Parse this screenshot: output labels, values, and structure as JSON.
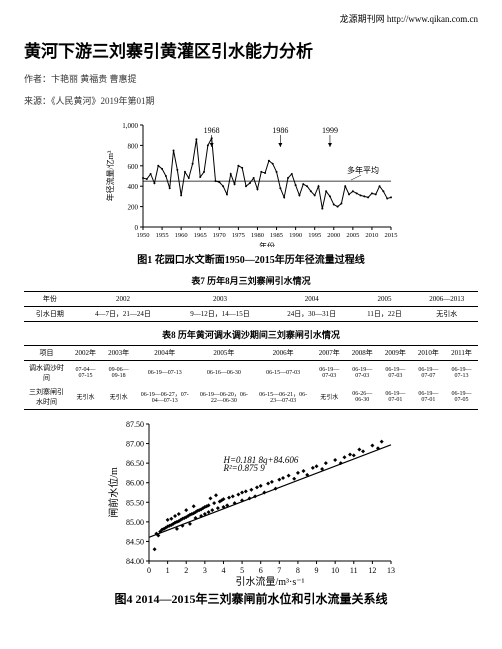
{
  "header": {
    "site_link": "龙源期刊网 http://www.qikan.com.cn"
  },
  "title": "黄河下游三刘寨引黄灌区引水能力分析",
  "authors_line": "作者：卞艳丽 黄福贵 曹惠提",
  "source_line": "来源：《人民黄河》2019年第01期",
  "fig1": {
    "caption": "图1   花园口水文断面1950—2015年历年径流量过程线",
    "ylabel": "年径流量/亿m³",
    "xlabel": "年份",
    "ylim": [
      0,
      1000
    ],
    "ytick_step": 200,
    "xlim": [
      1950,
      2015
    ],
    "xtick_step": 5,
    "annotations": [
      {
        "label": "1968",
        "x": 1968
      },
      {
        "label": "1986",
        "x": 1986
      },
      {
        "label": "1999",
        "x": 1999
      }
    ],
    "avg_label": "多年平均",
    "data": [
      [
        1950,
        480
      ],
      [
        1951,
        470
      ],
      [
        1952,
        520
      ],
      [
        1953,
        430
      ],
      [
        1954,
        600
      ],
      [
        1955,
        570
      ],
      [
        1956,
        500
      ],
      [
        1957,
        380
      ],
      [
        1958,
        750
      ],
      [
        1959,
        560
      ],
      [
        1960,
        310
      ],
      [
        1961,
        540
      ],
      [
        1962,
        480
      ],
      [
        1963,
        620
      ],
      [
        1964,
        860
      ],
      [
        1965,
        490
      ],
      [
        1966,
        540
      ],
      [
        1967,
        800
      ],
      [
        1968,
        870
      ],
      [
        1969,
        450
      ],
      [
        1970,
        440
      ],
      [
        1971,
        400
      ],
      [
        1972,
        320
      ],
      [
        1973,
        520
      ],
      [
        1974,
        420
      ],
      [
        1975,
        600
      ],
      [
        1976,
        580
      ],
      [
        1977,
        400
      ],
      [
        1978,
        430
      ],
      [
        1979,
        480
      ],
      [
        1980,
        370
      ],
      [
        1981,
        540
      ],
      [
        1982,
        530
      ],
      [
        1983,
        650
      ],
      [
        1984,
        620
      ],
      [
        1985,
        540
      ],
      [
        1986,
        380
      ],
      [
        1987,
        290
      ],
      [
        1988,
        480
      ],
      [
        1989,
        520
      ],
      [
        1990,
        410
      ],
      [
        1991,
        310
      ],
      [
        1992,
        420
      ],
      [
        1993,
        400
      ],
      [
        1994,
        350
      ],
      [
        1995,
        310
      ],
      [
        1996,
        400
      ],
      [
        1997,
        180
      ],
      [
        1998,
        350
      ],
      [
        1999,
        300
      ],
      [
        2000,
        220
      ],
      [
        2001,
        200
      ],
      [
        2002,
        230
      ],
      [
        2003,
        400
      ],
      [
        2004,
        320
      ],
      [
        2005,
        350
      ],
      [
        2006,
        330
      ],
      [
        2007,
        310
      ],
      [
        2008,
        300
      ],
      [
        2009,
        290
      ],
      [
        2010,
        330
      ],
      [
        2011,
        320
      ],
      [
        2012,
        400
      ],
      [
        2013,
        350
      ],
      [
        2014,
        280
      ],
      [
        2015,
        290
      ]
    ],
    "avg_value": 450,
    "line_color": "#000",
    "grid_color": "#ccc"
  },
  "table7": {
    "title": "表7 历年8月三刘寨闸引水情况",
    "headers": [
      "年份",
      "2002",
      "2003",
      "2004",
      "2005",
      "2006—2013"
    ],
    "row_label": "引水日期",
    "cells": [
      "4—7日，21—24日",
      "9—12日，14—15日",
      "24日，30—31日",
      "11日，22日",
      "无引水"
    ]
  },
  "table8": {
    "title": "表8 历年黄河调水调沙期间三刘寨闸引水情况",
    "headers": [
      "项目",
      "2002年",
      "2003年",
      "2004年",
      "2005年",
      "2006年",
      "2007年",
      "2008年",
      "2009年",
      "2010年",
      "2011年"
    ],
    "rows": [
      {
        "label": "调水调沙时间",
        "cells": [
          "07-04—07-15",
          "09-06—09-18",
          "06-19—07-13",
          "06-16—06-30",
          "06-15—07-03",
          "06-19—07-03",
          "06-19—07-03",
          "06-19—07-03",
          "06-19—07-07",
          "06-19—07-13"
        ]
      },
      {
        "label": "三刘寨闸引水时间",
        "cells": [
          "无引水",
          "无引水",
          "06-19—06-27，07-04—07-13",
          "06-19—06-20，06-22—06-30",
          "06-15—06-21，06-23—07-03",
          "无引水",
          "06-26—06-30",
          "06-19—07-01",
          "06-19—07-01",
          "06-19—07-05"
        ]
      }
    ]
  },
  "fig4": {
    "caption": "图4  2014—2015年三刘寨闸前水位和引水流量关系线",
    "xlabel": "引水流量/m³·s⁻¹",
    "ylabel": "闸前水位/m",
    "xlim": [
      0,
      13
    ],
    "xtick_step": 1,
    "ylim": [
      84.0,
      87.5
    ],
    "ytick_step": 0.5,
    "eq1": "H=0.181 8q+84.606",
    "eq2": "R²=0.875 9",
    "fit": {
      "m": 0.1818,
      "b": 84.606
    },
    "points": [
      [
        0.3,
        84.3
      ],
      [
        0.4,
        84.7
      ],
      [
        0.5,
        84.65
      ],
      [
        0.6,
        84.75
      ],
      [
        0.7,
        84.8
      ],
      [
        0.8,
        84.82
      ],
      [
        0.9,
        84.85
      ],
      [
        1.0,
        84.88
      ],
      [
        1.0,
        85.05
      ],
      [
        1.1,
        84.9
      ],
      [
        1.2,
        84.92
      ],
      [
        1.2,
        85.08
      ],
      [
        1.3,
        84.95
      ],
      [
        1.4,
        84.98
      ],
      [
        1.4,
        85.15
      ],
      [
        1.5,
        85.0
      ],
      [
        1.5,
        84.82
      ],
      [
        1.6,
        85.02
      ],
      [
        1.6,
        85.2
      ],
      [
        1.7,
        85.05
      ],
      [
        1.8,
        85.08
      ],
      [
        1.8,
        84.9
      ],
      [
        1.9,
        85.1
      ],
      [
        2.0,
        85.12
      ],
      [
        2.0,
        85.3
      ],
      [
        2.1,
        85.15
      ],
      [
        2.2,
        85.18
      ],
      [
        2.2,
        84.95
      ],
      [
        2.3,
        85.2
      ],
      [
        2.4,
        85.22
      ],
      [
        2.4,
        85.4
      ],
      [
        2.5,
        85.1
      ],
      [
        2.5,
        85.25
      ],
      [
        2.6,
        85.28
      ],
      [
        2.7,
        85.3
      ],
      [
        2.8,
        85.15
      ],
      [
        2.8,
        85.32
      ],
      [
        2.9,
        85.35
      ],
      [
        3.0,
        85.2
      ],
      [
        3.0,
        85.38
      ],
      [
        3.1,
        85.4
      ],
      [
        3.2,
        85.25
      ],
      [
        3.2,
        85.42
      ],
      [
        3.3,
        85.6
      ],
      [
        3.4,
        85.3
      ],
      [
        3.5,
        85.48
      ],
      [
        3.6,
        85.68
      ],
      [
        3.7,
        85.35
      ],
      [
        3.8,
        85.52
      ],
      [
        3.9,
        85.55
      ],
      [
        4.0,
        85.38
      ],
      [
        4.0,
        85.58
      ],
      [
        4.2,
        85.42
      ],
      [
        4.3,
        85.62
      ],
      [
        4.5,
        85.65
      ],
      [
        4.6,
        85.48
      ],
      [
        4.8,
        85.7
      ],
      [
        5.0,
        85.55
      ],
      [
        5.0,
        85.75
      ],
      [
        5.2,
        85.78
      ],
      [
        5.4,
        85.6
      ],
      [
        5.5,
        85.82
      ],
      [
        5.7,
        85.65
      ],
      [
        5.8,
        85.88
      ],
      [
        6.0,
        85.92
      ],
      [
        6.2,
        85.75
      ],
      [
        6.4,
        85.98
      ],
      [
        6.6,
        86.02
      ],
      [
        6.8,
        85.85
      ],
      [
        7.0,
        86.08
      ],
      [
        7.2,
        86.12
      ],
      [
        7.5,
        86.18
      ],
      [
        7.8,
        86.1
      ],
      [
        8.0,
        86.25
      ],
      [
        8.3,
        86.3
      ],
      [
        8.5,
        86.2
      ],
      [
        8.8,
        86.38
      ],
      [
        9.0,
        86.42
      ],
      [
        9.3,
        86.35
      ],
      [
        9.5,
        86.5
      ],
      [
        10.0,
        86.58
      ],
      [
        10.3,
        86.5
      ],
      [
        10.5,
        86.65
      ],
      [
        10.8,
        86.72
      ],
      [
        11.0,
        86.7
      ],
      [
        11.3,
        86.85
      ],
      [
        11.5,
        86.8
      ],
      [
        12.0,
        86.95
      ],
      [
        12.3,
        86.88
      ],
      [
        12.5,
        87.05
      ]
    ],
    "point_color": "#000",
    "line_color": "#000"
  }
}
